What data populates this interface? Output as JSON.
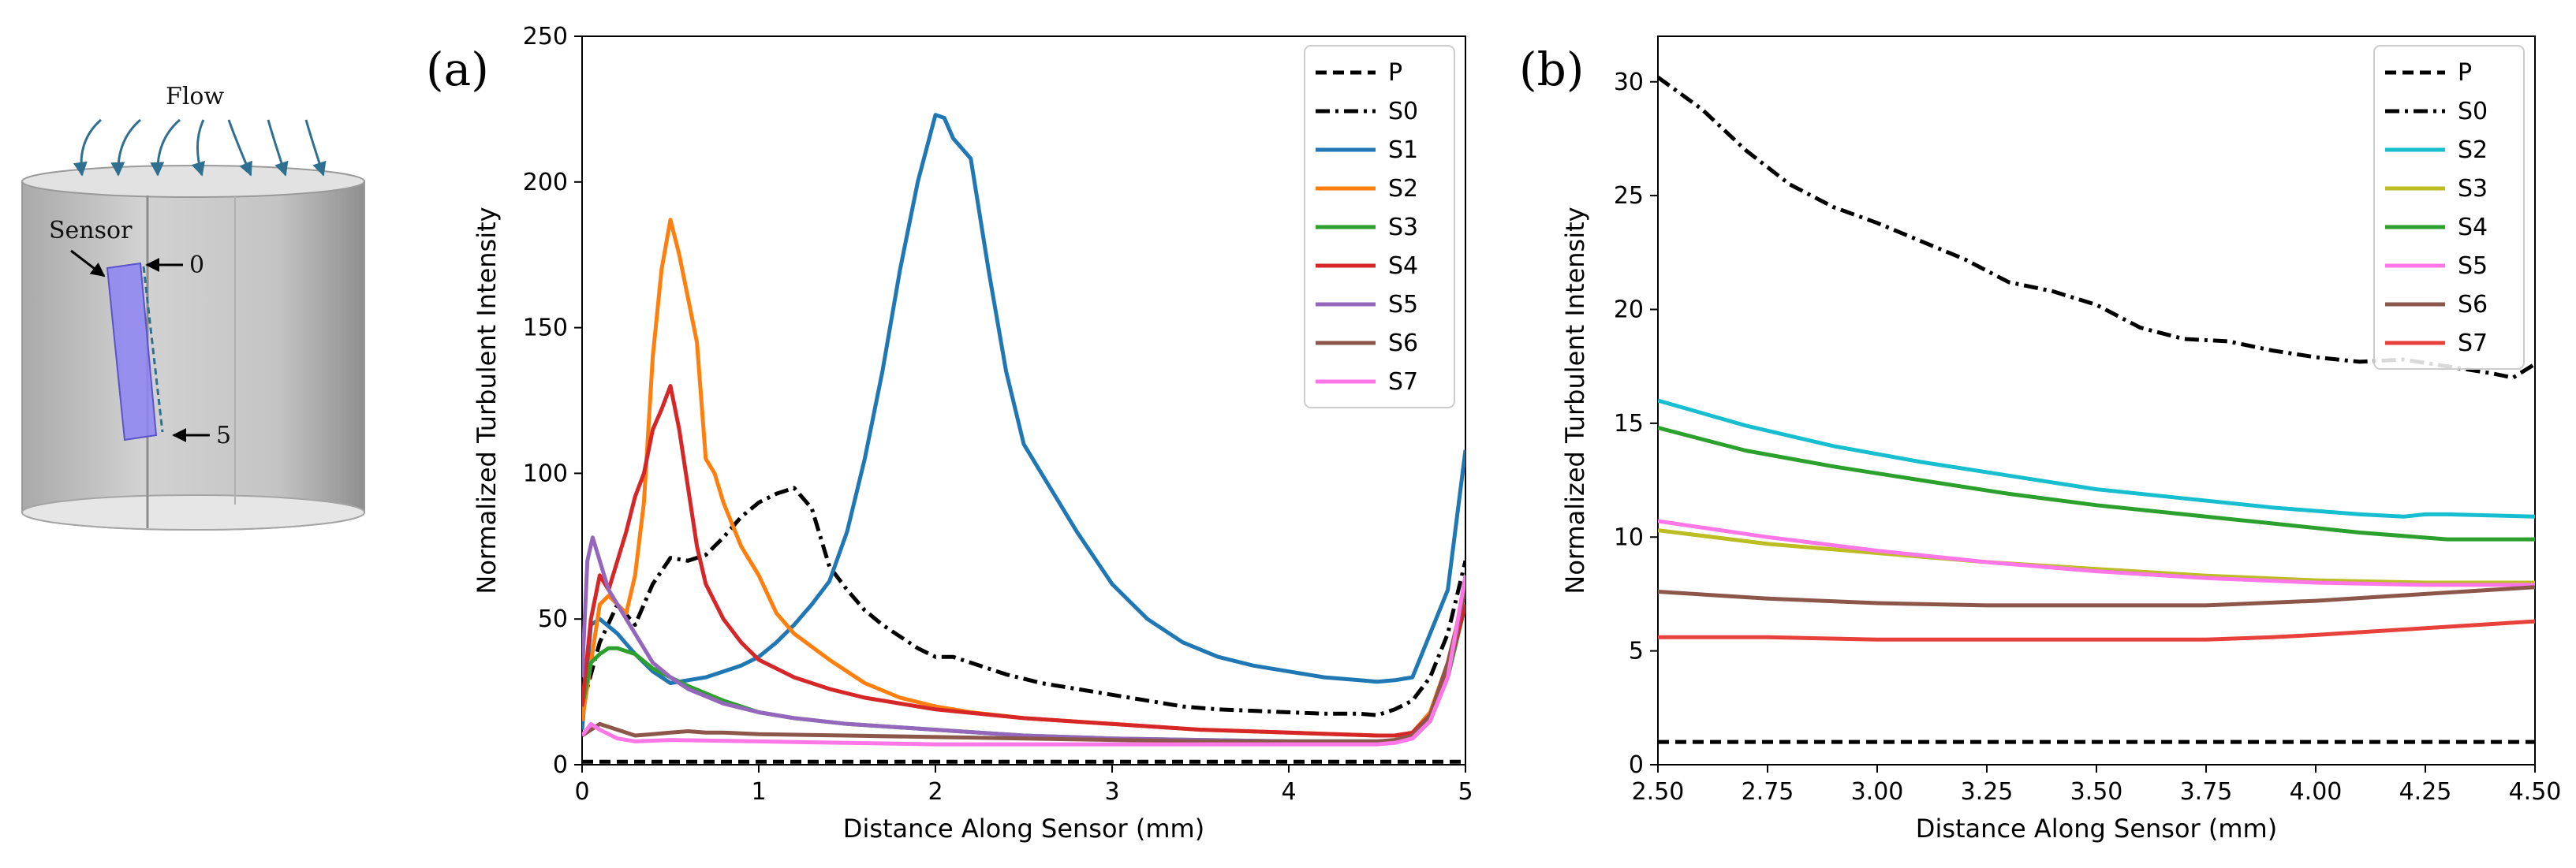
{
  "diagram": {
    "flow_label": "Flow",
    "sensor_label": "Sensor",
    "marker_start": "0",
    "marker_end": "5",
    "colors": {
      "cylinder": "#c9c9c9",
      "sensor": "#8c84f2",
      "arrows": "#2f6f8f"
    }
  },
  "chart_data": [
    {
      "type": "line",
      "panel_label": "(a)",
      "xlabel": "Distance Along Sensor (mm)",
      "ylabel": "Normalized Turbulent Intensity",
      "xlim": [
        0,
        5
      ],
      "ylim": [
        0,
        250
      ],
      "xticks": [
        0,
        1,
        2,
        3,
        4,
        5
      ],
      "yticks": [
        0,
        50,
        100,
        150,
        200,
        250
      ],
      "legend_position": "top-right",
      "series": [
        {
          "name": "P",
          "color": "#000000",
          "dash": "dash",
          "x": [
            0,
            1,
            2,
            3,
            4,
            5
          ],
          "y": [
            1,
            1,
            1,
            1,
            1,
            1
          ]
        },
        {
          "name": "S0",
          "color": "#000000",
          "dash": "dashdot",
          "x": [
            0,
            0.1,
            0.2,
            0.3,
            0.4,
            0.5,
            0.6,
            0.7,
            0.8,
            0.9,
            1.0,
            1.1,
            1.2,
            1.3,
            1.4,
            1.5,
            1.6,
            1.7,
            1.8,
            1.9,
            2.0,
            2.1,
            2.2,
            2.4,
            2.6,
            2.8,
            3.0,
            3.2,
            3.4,
            3.6,
            3.8,
            4.0,
            4.2,
            4.4,
            4.5,
            4.6,
            4.7,
            4.8,
            4.9,
            5.0
          ],
          "y": [
            20,
            42,
            55,
            48,
            62,
            71,
            70,
            72,
            78,
            85,
            90,
            93,
            95,
            88,
            68,
            60,
            53,
            48,
            44,
            40,
            37,
            37,
            35,
            31,
            28,
            26,
            24,
            22,
            20,
            19,
            18.5,
            18,
            17.5,
            17.5,
            17,
            19,
            22,
            30,
            45,
            70
          ]
        },
        {
          "name": "S1",
          "color": "#1f77b4",
          "dash": "solid",
          "x": [
            0,
            0.05,
            0.1,
            0.2,
            0.3,
            0.4,
            0.5,
            0.6,
            0.7,
            0.8,
            0.9,
            1.0,
            1.1,
            1.2,
            1.3,
            1.4,
            1.5,
            1.6,
            1.7,
            1.8,
            1.9,
            2.0,
            2.05,
            2.1,
            2.2,
            2.3,
            2.4,
            2.5,
            2.6,
            2.8,
            3.0,
            3.2,
            3.4,
            3.6,
            3.8,
            4.0,
            4.2,
            4.4,
            4.5,
            4.6,
            4.7,
            4.8,
            4.9,
            5.0
          ],
          "y": [
            12,
            48,
            50,
            45,
            38,
            32,
            28,
            29,
            30,
            32,
            34,
            37,
            42,
            48,
            55,
            63,
            80,
            105,
            135,
            170,
            200,
            223,
            222,
            215,
            208,
            170,
            135,
            110,
            100,
            80,
            62,
            50,
            42,
            37,
            34,
            32,
            30,
            29,
            28.5,
            29,
            30,
            45,
            60,
            108
          ]
        },
        {
          "name": "S2",
          "color": "#ff7f0e",
          "dash": "solid",
          "x": [
            0,
            0.05,
            0.1,
            0.15,
            0.2,
            0.25,
            0.3,
            0.35,
            0.4,
            0.45,
            0.5,
            0.55,
            0.6,
            0.65,
            0.7,
            0.75,
            0.8,
            0.9,
            1.0,
            1.1,
            1.2,
            1.4,
            1.6,
            1.8,
            2.0,
            2.2,
            2.5,
            3.0,
            3.5,
            4.0,
            4.5,
            4.6,
            4.7,
            4.8,
            4.9,
            5.0
          ],
          "y": [
            15,
            35,
            55,
            58,
            55,
            52,
            65,
            90,
            140,
            170,
            187,
            175,
            160,
            145,
            105,
            100,
            90,
            75,
            65,
            52,
            45,
            36,
            28,
            23,
            20,
            18,
            16,
            14,
            12,
            11,
            10,
            10,
            11,
            18,
            35,
            60
          ]
        },
        {
          "name": "S3",
          "color": "#2ca02c",
          "dash": "solid",
          "x": [
            0,
            0.05,
            0.1,
            0.15,
            0.2,
            0.3,
            0.4,
            0.5,
            0.6,
            0.8,
            1.0,
            1.2,
            1.5,
            2.0,
            2.5,
            3.0,
            3.5,
            4.0,
            4.5,
            4.6,
            4.7,
            4.8,
            4.9,
            5.0
          ],
          "y": [
            20,
            35,
            38,
            40,
            40,
            38,
            33,
            30,
            27,
            22,
            18,
            16,
            14,
            12,
            10,
            9,
            8.5,
            8,
            8,
            8,
            9,
            15,
            30,
            55
          ]
        },
        {
          "name": "S4",
          "color": "#d62728",
          "dash": "solid",
          "x": [
            0,
            0.05,
            0.1,
            0.15,
            0.2,
            0.25,
            0.3,
            0.35,
            0.4,
            0.45,
            0.5,
            0.55,
            0.6,
            0.65,
            0.7,
            0.8,
            0.9,
            1.0,
            1.2,
            1.4,
            1.6,
            1.8,
            2.0,
            2.5,
            3.0,
            3.5,
            4.0,
            4.5,
            4.6,
            4.7,
            4.8,
            4.9,
            5.0
          ],
          "y": [
            20,
            50,
            65,
            60,
            70,
            80,
            92,
            100,
            115,
            122,
            130,
            115,
            95,
            75,
            62,
            50,
            42,
            36,
            30,
            26,
            23,
            21,
            19,
            16,
            14,
            12,
            11,
            10,
            10,
            11,
            17,
            32,
            55
          ]
        },
        {
          "name": "S5",
          "color": "#9467bd",
          "dash": "solid",
          "x": [
            0,
            0.03,
            0.06,
            0.1,
            0.15,
            0.2,
            0.3,
            0.4,
            0.5,
            0.6,
            0.8,
            1.0,
            1.2,
            1.5,
            2.0,
            2.5,
            3.0,
            3.5,
            4.0,
            4.5,
            4.6,
            4.7,
            4.8,
            4.9,
            5.0
          ],
          "y": [
            30,
            70,
            78,
            70,
            60,
            55,
            45,
            35,
            30,
            26,
            21,
            18,
            16,
            14,
            12,
            10,
            9,
            8.5,
            8,
            8,
            8,
            9,
            15,
            30,
            62
          ]
        },
        {
          "name": "S6",
          "color": "#8c564b",
          "dash": "solid",
          "x": [
            0,
            0.1,
            0.2,
            0.3,
            0.4,
            0.5,
            0.6,
            0.7,
            0.8,
            1.0,
            1.5,
            2.0,
            2.5,
            3.0,
            3.5,
            4.0,
            4.5,
            4.6,
            4.7,
            4.8,
            4.9,
            5.0
          ],
          "y": [
            10,
            14,
            12,
            10,
            10.5,
            11,
            11.5,
            11,
            11,
            10.5,
            10,
            9.5,
            9,
            8.5,
            8,
            8,
            8,
            8.5,
            10,
            17,
            35,
            60
          ]
        },
        {
          "name": "S7",
          "color": "#ff77e6",
          "dash": "solid",
          "x": [
            0,
            0.05,
            0.1,
            0.2,
            0.3,
            0.5,
            1.0,
            1.5,
            2.0,
            2.5,
            3.0,
            3.5,
            4.0,
            4.5,
            4.6,
            4.7,
            4.8,
            4.9,
            5.0
          ],
          "y": [
            10,
            14,
            12,
            9,
            8,
            8.5,
            8,
            7.5,
            7,
            7,
            7,
            7,
            7,
            7,
            7.5,
            9,
            15,
            30,
            65
          ]
        }
      ]
    },
    {
      "type": "line",
      "panel_label": "(b)",
      "xlabel": "Distance Along Sensor (mm)",
      "ylabel": "Normalized Turbulent Intensity",
      "xlim": [
        2.5,
        4.5
      ],
      "ylim": [
        0,
        32
      ],
      "xticks": [
        2.5,
        2.75,
        3.0,
        3.25,
        3.5,
        3.75,
        4.0,
        4.25,
        4.5
      ],
      "xtick_labels": [
        "2.50",
        "2.75",
        "3.00",
        "3.25",
        "3.50",
        "3.75",
        "4.00",
        "4.25",
        "4.50"
      ],
      "yticks": [
        0,
        5,
        10,
        15,
        20,
        25,
        30
      ],
      "legend_position": "top-right",
      "series": [
        {
          "name": "P",
          "color": "#000000",
          "dash": "dash",
          "x": [
            2.5,
            4.5
          ],
          "y": [
            1,
            1
          ]
        },
        {
          "name": "S0",
          "color": "#000000",
          "dash": "dashdot",
          "x": [
            2.5,
            2.6,
            2.7,
            2.8,
            2.9,
            3.0,
            3.1,
            3.2,
            3.3,
            3.4,
            3.5,
            3.6,
            3.7,
            3.8,
            3.9,
            4.0,
            4.1,
            4.2,
            4.3,
            4.4,
            4.45,
            4.5
          ],
          "y": [
            30.2,
            28.8,
            27.0,
            25.5,
            24.5,
            23.8,
            23.0,
            22.2,
            21.2,
            20.8,
            20.2,
            19.2,
            18.7,
            18.6,
            18.2,
            17.9,
            17.7,
            17.8,
            17.5,
            17.2,
            17.0,
            17.6
          ]
        },
        {
          "name": "S2",
          "color": "#17becf",
          "dash": "solid",
          "x": [
            2.5,
            2.7,
            2.9,
            3.1,
            3.3,
            3.5,
            3.7,
            3.9,
            4.1,
            4.2,
            4.25,
            4.3,
            4.5
          ],
          "y": [
            16.0,
            14.9,
            14.0,
            13.3,
            12.7,
            12.1,
            11.7,
            11.3,
            11.0,
            10.9,
            11.0,
            11.0,
            10.9
          ]
        },
        {
          "name": "S3",
          "color": "#bcbd22",
          "dash": "solid",
          "x": [
            2.5,
            2.75,
            3.0,
            3.25,
            3.5,
            3.75,
            4.0,
            4.25,
            4.5
          ],
          "y": [
            10.3,
            9.7,
            9.3,
            8.9,
            8.6,
            8.3,
            8.1,
            8.0,
            8.0
          ]
        },
        {
          "name": "S4",
          "color": "#2ca02c",
          "dash": "solid",
          "x": [
            2.5,
            2.7,
            2.9,
            3.1,
            3.3,
            3.5,
            3.7,
            3.9,
            4.1,
            4.3,
            4.5
          ],
          "y": [
            14.8,
            13.8,
            13.1,
            12.5,
            11.9,
            11.4,
            11.0,
            10.6,
            10.2,
            9.9,
            9.9
          ]
        },
        {
          "name": "S5",
          "color": "#ff77e6",
          "dash": "solid",
          "x": [
            2.5,
            2.75,
            3.0,
            3.25,
            3.5,
            3.75,
            4.0,
            4.25,
            4.5
          ],
          "y": [
            10.7,
            10.0,
            9.4,
            8.9,
            8.5,
            8.2,
            8.0,
            7.9,
            7.9
          ]
        },
        {
          "name": "S6",
          "color": "#8c564b",
          "dash": "solid",
          "x": [
            2.5,
            2.75,
            3.0,
            3.25,
            3.5,
            3.75,
            4.0,
            4.25,
            4.5
          ],
          "y": [
            7.6,
            7.3,
            7.1,
            7.0,
            7.0,
            7.0,
            7.2,
            7.5,
            7.8
          ]
        },
        {
          "name": "S7",
          "color": "#e8403a",
          "dash": "solid",
          "x": [
            2.5,
            2.75,
            3.0,
            3.25,
            3.5,
            3.75,
            3.9,
            4.0,
            4.25,
            4.5
          ],
          "y": [
            5.6,
            5.6,
            5.5,
            5.5,
            5.5,
            5.5,
            5.6,
            5.7,
            6.0,
            6.3
          ]
        }
      ]
    }
  ]
}
